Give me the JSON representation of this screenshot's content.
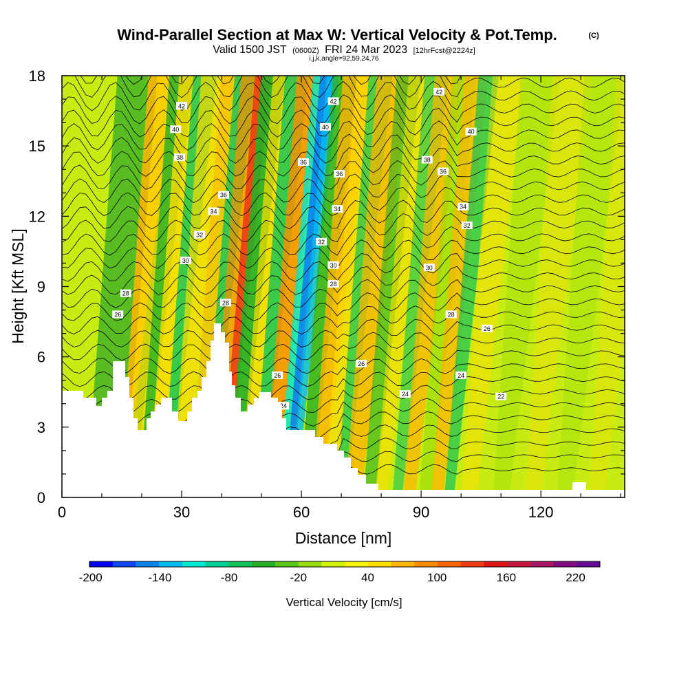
{
  "header": {
    "title": "Wind-Parallel Section at Max W: Vertical Velocity & Pot.Temp.",
    "copyright": "(C)",
    "valid_prefix": "Valid 1500 JST",
    "valid_utc": "(0600Z)",
    "valid_date": "FRI 24 Mar 2023",
    "forecast": "[12hrFcst@2224z]",
    "grid_info": "i,j,k,angle=92,59,24,76"
  },
  "chart_data": {
    "type": "heatmap",
    "xlabel": "Distance [nm]",
    "ylabel": "Height [Kft MSL]",
    "xlim": [
      0,
      141
    ],
    "ylim": [
      0,
      18
    ],
    "x_ticks": [
      "0",
      "30",
      "60",
      "90",
      "120"
    ],
    "y_ticks": [
      "0",
      "3",
      "6",
      "9",
      "12",
      "15",
      "18"
    ],
    "colorbar": {
      "label": "Vertical Velocity [cm/s]",
      "tick_labels": [
        "-200",
        "-140",
        "-80",
        "-20",
        "40",
        "100",
        "160",
        "220"
      ],
      "colors": [
        "#0000f0",
        "#0a46f5",
        "#0a82f0",
        "#00bef0",
        "#00e6d2",
        "#00d296",
        "#14c35a",
        "#28af28",
        "#5ac814",
        "#96dc0a",
        "#d2f00a",
        "#f5f50a",
        "#ffdc00",
        "#ffb400",
        "#ff8c00",
        "#ff6400",
        "#f03c14",
        "#dc1414",
        "#c8143c",
        "#aa1464",
        "#820a82",
        "#640a96"
      ]
    },
    "theta_contours": {
      "labels": [
        {
          "text": "42",
          "x": 30,
          "y": 16.7
        },
        {
          "text": "40",
          "x": 28.5,
          "y": 15.7
        },
        {
          "text": "38",
          "x": 29.5,
          "y": 14.5
        },
        {
          "text": "36",
          "x": 40.5,
          "y": 12.9
        },
        {
          "text": "34",
          "x": 38,
          "y": 12.2
        },
        {
          "text": "32",
          "x": 34.5,
          "y": 11.2
        },
        {
          "text": "30",
          "x": 31,
          "y": 10.1
        },
        {
          "text": "28",
          "x": 16,
          "y": 8.7
        },
        {
          "text": "28",
          "x": 41,
          "y": 8.3
        },
        {
          "text": "26",
          "x": 14,
          "y": 7.8
        },
        {
          "text": "26",
          "x": 54,
          "y": 5.2
        },
        {
          "text": "24",
          "x": 55.5,
          "y": 3.9
        },
        {
          "text": "42",
          "x": 68,
          "y": 16.9
        },
        {
          "text": "40",
          "x": 66,
          "y": 15.8
        },
        {
          "text": "36",
          "x": 60.5,
          "y": 14.3
        },
        {
          "text": "36",
          "x": 69.5,
          "y": 13.8
        },
        {
          "text": "34",
          "x": 69,
          "y": 12.3
        },
        {
          "text": "32",
          "x": 65,
          "y": 10.9
        },
        {
          "text": "30",
          "x": 68,
          "y": 9.9
        },
        {
          "text": "28",
          "x": 68,
          "y": 9.1
        },
        {
          "text": "26",
          "x": 75,
          "y": 5.7
        },
        {
          "text": "24",
          "x": 86,
          "y": 4.4
        },
        {
          "text": "42",
          "x": 94.5,
          "y": 17.3
        },
        {
          "text": "40",
          "x": 102.5,
          "y": 15.6
        },
        {
          "text": "38",
          "x": 91.5,
          "y": 14.4
        },
        {
          "text": "36",
          "x": 95.5,
          "y": 13.9
        },
        {
          "text": "34",
          "x": 100.5,
          "y": 12.4
        },
        {
          "text": "32",
          "x": 101.5,
          "y": 11.6
        },
        {
          "text": "30",
          "x": 92,
          "y": 9.8
        },
        {
          "text": "28",
          "x": 97.5,
          "y": 7.8
        },
        {
          "text": "26",
          "x": 106.5,
          "y": 7.2
        },
        {
          "text": "24",
          "x": 100,
          "y": 5.2
        },
        {
          "text": "22",
          "x": 110,
          "y": 4.3
        }
      ]
    }
  }
}
